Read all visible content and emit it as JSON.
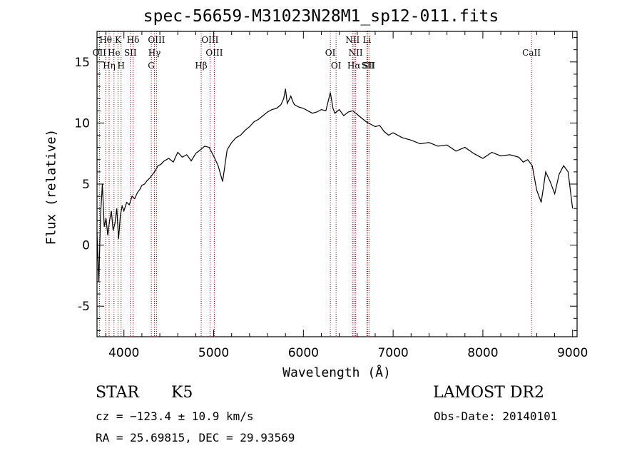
{
  "header": {
    "title": "spec-56659-M31023N28M1_sp12-011.fits"
  },
  "chart_data": {
    "type": "line",
    "title": "spec-56659-M31023N28M1_sp12-011.fits",
    "xlabel": "Wavelength (Å)",
    "ylabel": "Flux (relative)",
    "xlim": [
      3700,
      9050
    ],
    "ylim": [
      -7.5,
      17.5
    ],
    "xticks": [
      4000,
      5000,
      6000,
      7000,
      8000,
      9000
    ],
    "yticks": [
      -5,
      0,
      5,
      10,
      15
    ],
    "grid": false,
    "series": [
      {
        "x": [
          3700,
          3720,
          3740,
          3760,
          3780,
          3800,
          3820,
          3840,
          3860,
          3880,
          3900,
          3920,
          3940,
          3960,
          3980,
          4000,
          4030,
          4060,
          4090,
          4120,
          4150,
          4180,
          4200,
          4230,
          4260,
          4290,
          4320,
          4350,
          4380,
          4410,
          4450,
          4500,
          4550,
          4600,
          4650,
          4700,
          4750,
          4800,
          4850,
          4900,
          4950,
          5000,
          5050,
          5100,
          5150,
          5200,
          5250,
          5300,
          5350,
          5400,
          5450,
          5500,
          5550,
          5600,
          5650,
          5700,
          5750,
          5780,
          5800,
          5820,
          5840,
          5860,
          5880,
          5900,
          5950,
          6000,
          6050,
          6100,
          6150,
          6200,
          6250,
          6300,
          6330,
          6350,
          6400,
          6450,
          6500,
          6550,
          6600,
          6650,
          6700,
          6750,
          6800,
          6850,
          6900,
          6950,
          7000,
          7100,
          7200,
          7300,
          7400,
          7500,
          7600,
          7700,
          7800,
          7900,
          8000,
          8100,
          8200,
          8300,
          8400,
          8450,
          8500,
          8550,
          8600,
          8650,
          8700,
          8750,
          8800,
          8850,
          8900,
          8950,
          9000
        ],
        "y": [
          1.0,
          -3.0,
          2.5,
          5.0,
          1.5,
          2.2,
          0.8,
          2.0,
          2.8,
          1.2,
          1.8,
          3.0,
          0.5,
          2.4,
          3.2,
          2.8,
          3.5,
          3.3,
          4.0,
          3.8,
          4.3,
          4.6,
          4.9,
          5.0,
          5.3,
          5.5,
          5.8,
          6.1,
          6.5,
          6.6,
          6.9,
          7.1,
          6.8,
          7.6,
          7.2,
          7.4,
          6.9,
          7.5,
          7.8,
          8.1,
          8.0,
          7.3,
          6.5,
          5.2,
          7.8,
          8.4,
          8.8,
          9.0,
          9.4,
          9.7,
          10.1,
          10.3,
          10.6,
          10.9,
          11.1,
          11.2,
          11.5,
          12.0,
          12.8,
          11.6,
          11.9,
          12.2,
          11.8,
          11.5,
          11.3,
          11.2,
          11.0,
          10.8,
          10.9,
          11.1,
          11.0,
          12.5,
          11.2,
          10.8,
          11.1,
          10.6,
          10.9,
          11.0,
          10.7,
          10.4,
          10.1,
          9.9,
          9.7,
          9.8,
          9.3,
          9.0,
          9.2,
          8.8,
          8.6,
          8.3,
          8.4,
          8.1,
          8.2,
          7.7,
          8.0,
          7.5,
          7.1,
          7.6,
          7.3,
          7.4,
          7.2,
          6.8,
          7.0,
          6.5,
          4.5,
          3.5,
          6.0,
          5.2,
          4.2,
          5.8,
          6.5,
          6.0,
          3.0
        ]
      }
    ],
    "annotations": {
      "spectral_lines": [
        {
          "label": "Hθ",
          "x": 3797,
          "row": 1
        },
        {
          "label": "OII",
          "x": 3727,
          "row": 2
        },
        {
          "label": "Hη",
          "x": 3835,
          "row": 3
        },
        {
          "label": "K",
          "x": 3934,
          "row": 1
        },
        {
          "label": "He",
          "x": 3889,
          "row": 2
        },
        {
          "label": "H",
          "x": 3968,
          "row": 3
        },
        {
          "label": "SII",
          "x": 4072,
          "row": 2
        },
        {
          "label": "Hδ",
          "x": 4102,
          "row": 1
        },
        {
          "label": "OIII",
          "x": 4363,
          "row": 1
        },
        {
          "label": "Hγ",
          "x": 4340,
          "row": 2
        },
        {
          "label": "G",
          "x": 4305,
          "row": 3
        },
        {
          "label": "OIII",
          "x": 4959,
          "row": 1
        },
        {
          "label": "OIII",
          "x": 5007,
          "row": 2
        },
        {
          "label": "Hβ",
          "x": 4861,
          "row": 3
        },
        {
          "label": "OI",
          "x": 6300,
          "row": 2
        },
        {
          "label": "OI",
          "x": 6364,
          "row": 3
        },
        {
          "label": "NII",
          "x": 6548,
          "row": 1
        },
        {
          "label": "NII",
          "x": 6583,
          "row": 2
        },
        {
          "label": "Hα",
          "x": 6563,
          "row": 3
        },
        {
          "label": "Li",
          "x": 6708,
          "row": 1
        },
        {
          "label": "SII",
          "x": 6716,
          "row": 3
        },
        {
          "label": "SII",
          "x": 6731,
          "row": 3
        },
        {
          "label": "CaII",
          "x": 8542,
          "row": 2
        }
      ],
      "line_color": "#a00000"
    }
  },
  "info": {
    "object_class": "STAR",
    "subclass": "K5",
    "survey": "LAMOST DR2",
    "cz": "cz = −123.4 ± 10.9 km/s",
    "obs_date": "Obs-Date: 20140101",
    "coords": "RA =  25.69815, DEC =  29.93569"
  }
}
